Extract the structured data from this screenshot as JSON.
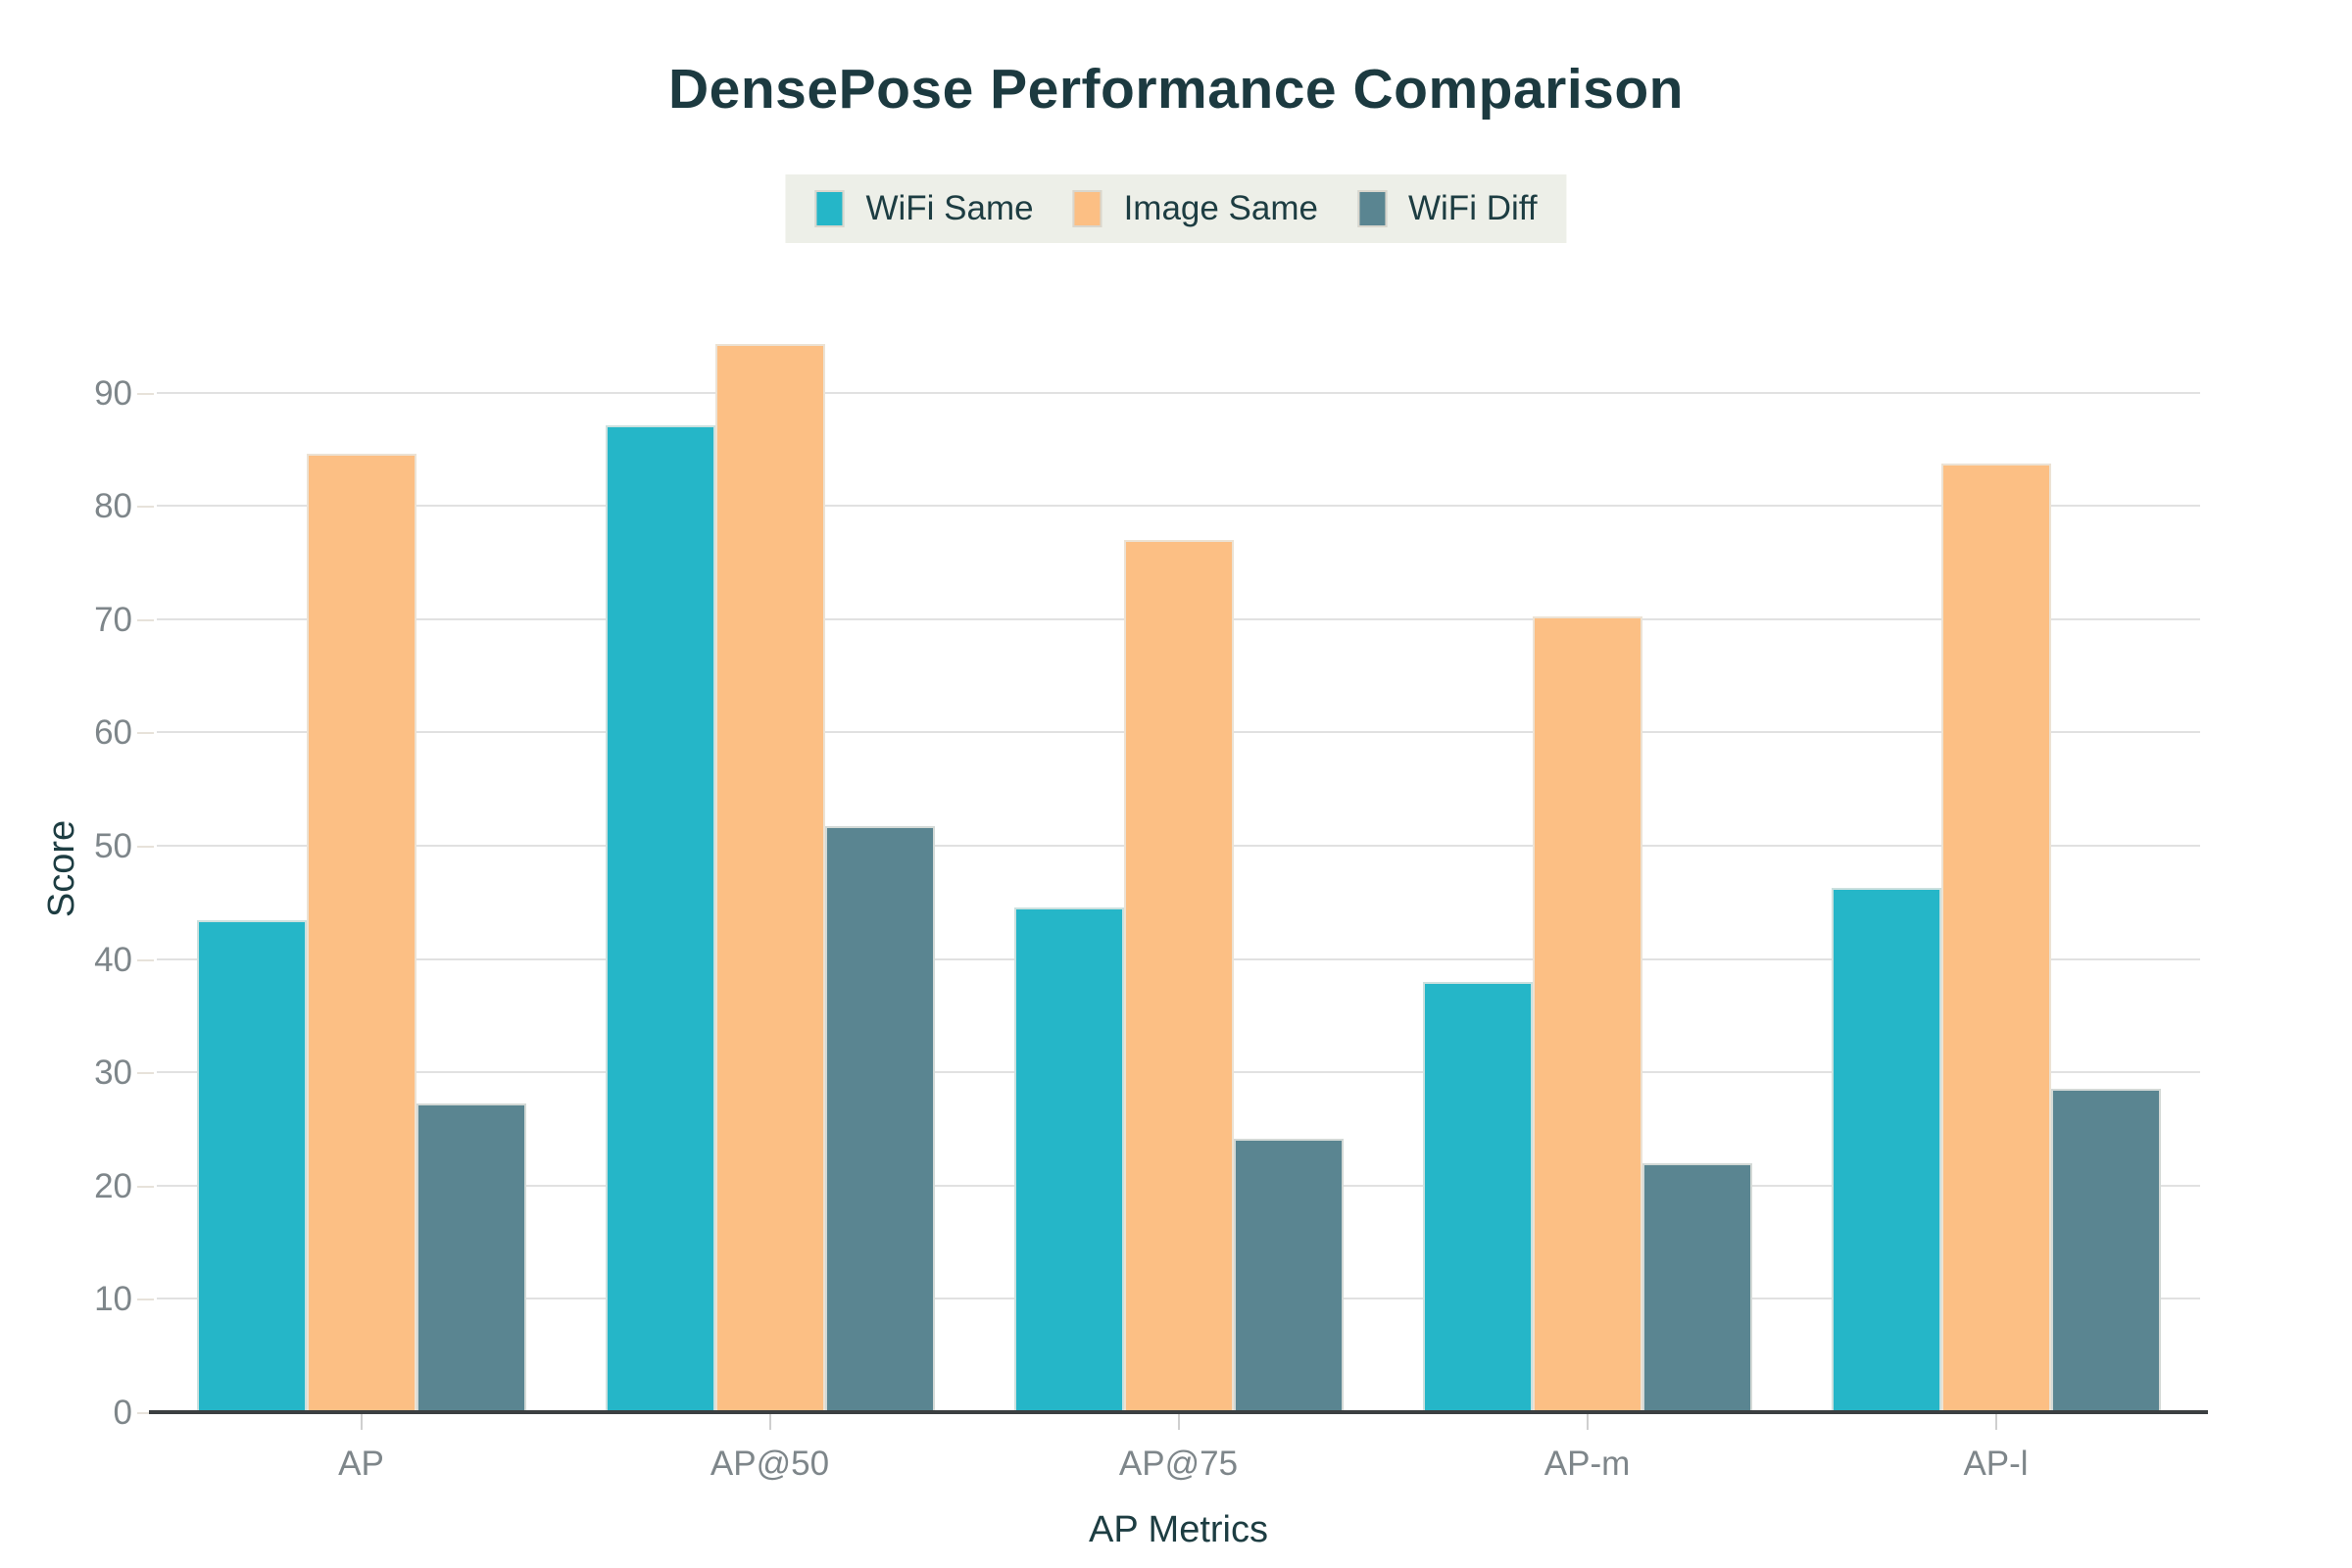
{
  "title": "DensePose Performance Comparison",
  "chart_data": {
    "type": "bar",
    "title": "DensePose Performance Comparison",
    "categories": [
      "AP",
      "AP@50",
      "AP@75",
      "AP-m",
      "AP-l"
    ],
    "series": [
      {
        "name": "WiFi Same",
        "color": "#25b6c8",
        "values": [
          43.5,
          87.2,
          44.6,
          38.1,
          46.4
        ]
      },
      {
        "name": "Image Same",
        "color": "#fcbf84",
        "values": [
          84.7,
          94.4,
          77.1,
          70.3,
          83.8
        ]
      },
      {
        "name": "WiFi Diff",
        "color": "#5a8591",
        "values": [
          27.3,
          51.8,
          24.2,
          22.1,
          28.6
        ]
      }
    ],
    "xlabel": "AP Metrics",
    "ylabel": "Score",
    "ylim": [
      0,
      100
    ],
    "yticks": [
      0,
      10,
      20,
      30,
      40,
      50,
      60,
      70,
      80,
      90
    ],
    "grid": true,
    "legend_position": "top",
    "legend_background": "#edefe8",
    "colors": {
      "title_text": "#1c3a40",
      "axis_title_text": "#1d3d42",
      "tick_label_text": "#7e868a",
      "gridline": "#e1e1e1",
      "axis_baseline": "#3b3f41"
    }
  }
}
